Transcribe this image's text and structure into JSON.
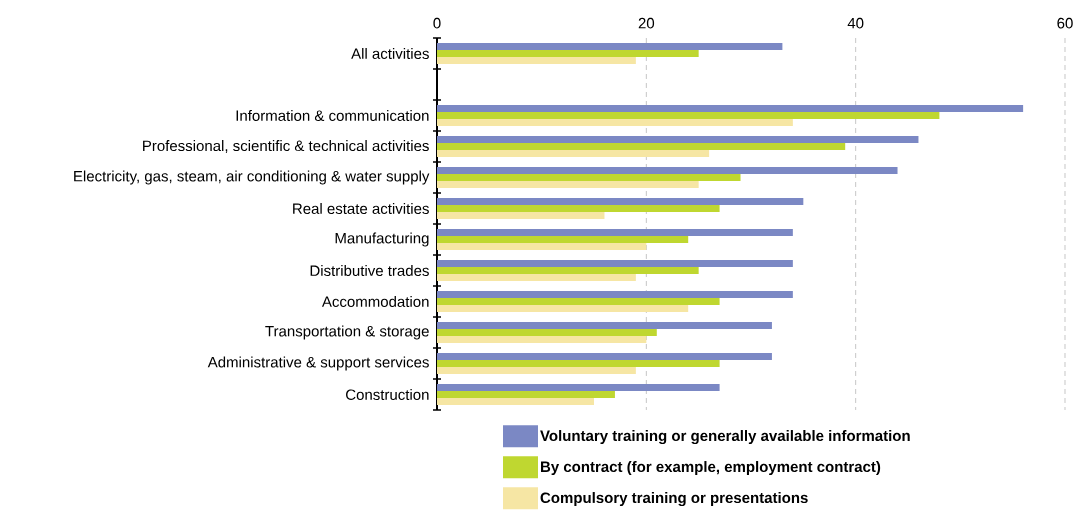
{
  "chart_data": {
    "type": "bar",
    "orientation": "horizontal",
    "categories": [
      "All activities",
      null,
      "Information & communication",
      "Professional, scientific & technical activities",
      "Electricity, gas, steam, air conditioning & water supply",
      "Real estate activities",
      "Manufacturing",
      "Distributive trades",
      "Accommodation",
      "Transportation & storage",
      "Administrative & support services",
      "Construction"
    ],
    "series": [
      {
        "name": "Voluntary training or generally available information",
        "color": "#7b88c4",
        "values": [
          33,
          null,
          56,
          46,
          44,
          35,
          34,
          34,
          34,
          32,
          32,
          27
        ]
      },
      {
        "name": "By contract (for example, employment contract)",
        "color": "#bfd730",
        "values": [
          25,
          null,
          48,
          39,
          29,
          27,
          24,
          25,
          27,
          21,
          27,
          17
        ]
      },
      {
        "name": "Compulsory training or presentations",
        "color": "#f6e6a4",
        "values": [
          19,
          null,
          34,
          26,
          25,
          16,
          20,
          19,
          24,
          20,
          19,
          15
        ]
      }
    ],
    "xlim": [
      0,
      60
    ],
    "xticks": [
      0,
      20,
      40,
      60
    ],
    "grid": "x",
    "legend": "bottom"
  }
}
